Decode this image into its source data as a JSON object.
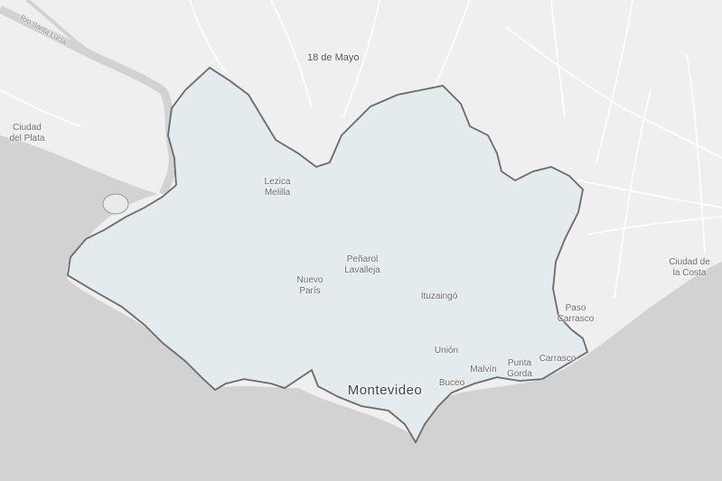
{
  "map": {
    "colors": {
      "water": "#cfcfcf",
      "land": "#efefef",
      "roads": "#ffffff",
      "department_fill": "#e4ebee",
      "department_border": "#6e6e6e",
      "low": "#bcdcf2",
      "low_strong": "#3a85c8",
      "mid": "#f4b8a4",
      "high": "#e06060",
      "very_high": "#d73a3a"
    },
    "labels": {
      "rio_santa_lucia": "Río Santa Lucía",
      "dieciocho_de_mayo": "18 de Mayo",
      "ciudad_del_plata": "Ciudad\ndel Plata",
      "lezica_melilla": "Lezica\nMelilla",
      "penarol_lavalleja": "Peñarol\nLavalleja",
      "nuevo_paris": "Nuevo\nParís",
      "ituzaingo": "Ituzaingó",
      "paso_carrasco": "Paso\nCarrasco",
      "ciudad_de_la_costa": "Ciudad de\nla Costa",
      "union": "Unión",
      "malvin": "Malvín",
      "punta_gorda": "Punta\nGorda",
      "carrasco": "Carrasco",
      "buceo": "Buceo",
      "montevideo": "Montevideo"
    }
  }
}
